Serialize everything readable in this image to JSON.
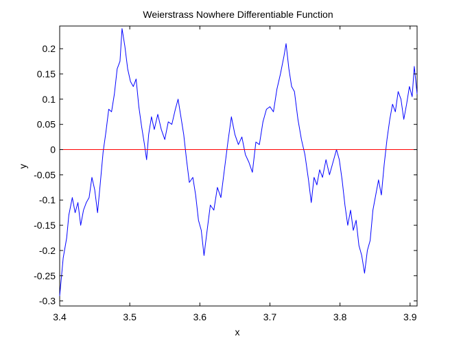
{
  "chart_data": {
    "type": "line",
    "title": "Weierstrass Nowhere Differentiable Function",
    "xlabel": "x",
    "ylabel": "y",
    "xlim": [
      3.4,
      3.91
    ],
    "ylim": [
      -0.31,
      0.245
    ],
    "xticks": [
      3.4,
      3.5,
      3.6,
      3.7,
      3.8,
      3.9
    ],
    "xtick_labels": [
      "3.4",
      "3.5",
      "3.6",
      "3.7",
      "3.8",
      "3.9"
    ],
    "yticks": [
      -0.3,
      -0.25,
      -0.2,
      -0.15,
      -0.1,
      -0.05,
      0,
      0.05,
      0.1,
      0.15,
      0.2
    ],
    "ytick_labels": [
      "-0.3",
      "-0.25",
      "-0.2",
      "-0.15",
      "-0.1",
      "-0.05",
      "0",
      "0.05",
      "0.1",
      "0.15",
      "0.2"
    ],
    "grid": false,
    "series": [
      {
        "color": "#0000ff",
        "points": [
          [
            3.4,
            -0.29
          ],
          [
            3.405,
            -0.215
          ],
          [
            3.41,
            -0.175
          ],
          [
            3.413,
            -0.13
          ],
          [
            3.418,
            -0.095
          ],
          [
            3.422,
            -0.125
          ],
          [
            3.426,
            -0.105
          ],
          [
            3.43,
            -0.15
          ],
          [
            3.434,
            -0.12
          ],
          [
            3.438,
            -0.105
          ],
          [
            3.442,
            -0.095
          ],
          [
            3.446,
            -0.055
          ],
          [
            3.45,
            -0.08
          ],
          [
            3.454,
            -0.125
          ],
          [
            3.458,
            -0.065
          ],
          [
            3.462,
            -0.005
          ],
          [
            3.466,
            0.035
          ],
          [
            3.47,
            0.08
          ],
          [
            3.474,
            0.075
          ],
          [
            3.478,
            0.11
          ],
          [
            3.482,
            0.16
          ],
          [
            3.486,
            0.175
          ],
          [
            3.489,
            0.24
          ],
          [
            3.493,
            0.205
          ],
          [
            3.497,
            0.16
          ],
          [
            3.501,
            0.135
          ],
          [
            3.505,
            0.125
          ],
          [
            3.509,
            0.14
          ],
          [
            3.513,
            0.085
          ],
          [
            3.517,
            0.045
          ],
          [
            3.521,
            0.01
          ],
          [
            3.524,
            -0.02
          ],
          [
            3.527,
            0.03
          ],
          [
            3.531,
            0.065
          ],
          [
            3.535,
            0.04
          ],
          [
            3.54,
            0.07
          ],
          [
            3.545,
            0.04
          ],
          [
            3.55,
            0.02
          ],
          [
            3.555,
            0.055
          ],
          [
            3.56,
            0.05
          ],
          [
            3.565,
            0.08
          ],
          [
            3.569,
            0.1
          ],
          [
            3.573,
            0.065
          ],
          [
            3.577,
            0.03
          ],
          [
            3.581,
            -0.02
          ],
          [
            3.585,
            -0.065
          ],
          [
            3.59,
            -0.055
          ],
          [
            3.594,
            -0.09
          ],
          [
            3.598,
            -0.14
          ],
          [
            3.602,
            -0.16
          ],
          [
            3.606,
            -0.21
          ],
          [
            3.61,
            -0.165
          ],
          [
            3.615,
            -0.11
          ],
          [
            3.62,
            -0.12
          ],
          [
            3.625,
            -0.075
          ],
          [
            3.63,
            -0.095
          ],
          [
            3.635,
            -0.04
          ],
          [
            3.64,
            0.015
          ],
          [
            3.645,
            0.065
          ],
          [
            3.65,
            0.03
          ],
          [
            3.655,
            0.01
          ],
          [
            3.66,
            0.025
          ],
          [
            3.665,
            -0.01
          ],
          [
            3.67,
            -0.025
          ],
          [
            3.675,
            -0.045
          ],
          [
            3.68,
            0.015
          ],
          [
            3.685,
            0.01
          ],
          [
            3.69,
            0.055
          ],
          [
            3.695,
            0.08
          ],
          [
            3.7,
            0.085
          ],
          [
            3.705,
            0.075
          ],
          [
            3.71,
            0.12
          ],
          [
            3.715,
            0.15
          ],
          [
            3.72,
            0.185
          ],
          [
            3.723,
            0.21
          ],
          [
            3.727,
            0.16
          ],
          [
            3.731,
            0.125
          ],
          [
            3.735,
            0.115
          ],
          [
            3.74,
            0.06
          ],
          [
            3.745,
            0.02
          ],
          [
            3.75,
            -0.01
          ],
          [
            3.755,
            -0.06
          ],
          [
            3.759,
            -0.105
          ],
          [
            3.763,
            -0.055
          ],
          [
            3.767,
            -0.07
          ],
          [
            3.771,
            -0.04
          ],
          [
            3.775,
            -0.055
          ],
          [
            3.78,
            -0.02
          ],
          [
            3.785,
            -0.05
          ],
          [
            3.79,
            -0.025
          ],
          [
            3.795,
            0.0
          ],
          [
            3.799,
            -0.02
          ],
          [
            3.803,
            -0.06
          ],
          [
            3.807,
            -0.11
          ],
          [
            3.811,
            -0.15
          ],
          [
            3.815,
            -0.12
          ],
          [
            3.819,
            -0.16
          ],
          [
            3.823,
            -0.14
          ],
          [
            3.827,
            -0.19
          ],
          [
            3.831,
            -0.21
          ],
          [
            3.835,
            -0.245
          ],
          [
            3.839,
            -0.2
          ],
          [
            3.843,
            -0.18
          ],
          [
            3.847,
            -0.12
          ],
          [
            3.851,
            -0.09
          ],
          [
            3.855,
            -0.06
          ],
          [
            3.859,
            -0.09
          ],
          [
            3.863,
            -0.03
          ],
          [
            3.867,
            0.02
          ],
          [
            3.871,
            0.06
          ],
          [
            3.875,
            0.09
          ],
          [
            3.879,
            0.075
          ],
          [
            3.883,
            0.115
          ],
          [
            3.887,
            0.1
          ],
          [
            3.891,
            0.06
          ],
          [
            3.895,
            0.09
          ],
          [
            3.899,
            0.125
          ],
          [
            3.903,
            0.105
          ],
          [
            3.906,
            0.165
          ],
          [
            3.91,
            0.11
          ]
        ]
      },
      {
        "color": "#ff0000",
        "points": [
          [
            3.4,
            0
          ],
          [
            3.91,
            0
          ]
        ]
      }
    ]
  }
}
